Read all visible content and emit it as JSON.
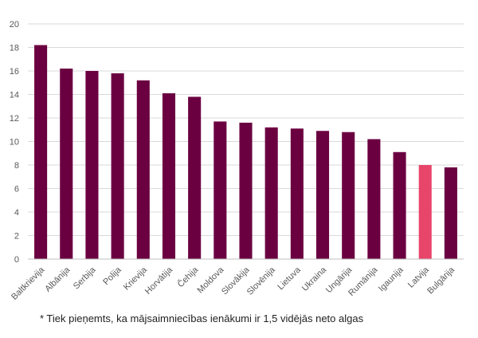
{
  "chart_data": {
    "type": "bar",
    "categories": [
      "Baltkrievija",
      "Albānija",
      "Serbija",
      "Polija",
      "Krievija",
      "Horvātija",
      "Čehija",
      "Moldova",
      "Slovākija",
      "Slovēnija",
      "Lietuva",
      "Ukraina",
      "Ungārija",
      "Rumānija",
      "Igaunija",
      "Latvija",
      "Bulgārija"
    ],
    "values": [
      18.2,
      16.2,
      16.0,
      15.8,
      15.2,
      14.1,
      13.8,
      11.7,
      11.6,
      11.2,
      11.1,
      10.9,
      10.8,
      10.2,
      9.1,
      8.0,
      7.8
    ],
    "ylim": [
      0,
      20
    ],
    "yticks": [
      0,
      2,
      4,
      6,
      8,
      10,
      12,
      14,
      16,
      18,
      20
    ],
    "grid": true,
    "colors": {
      "default": "#6b0041",
      "highlight": "#e8456b"
    },
    "highlight_category": "Latvija",
    "title": "",
    "xlabel": "",
    "ylabel": ""
  },
  "footnote": "* Tiek pieņemts, ka mājsaimniecības ienākumi ir 1,5 vidējās neto algas"
}
